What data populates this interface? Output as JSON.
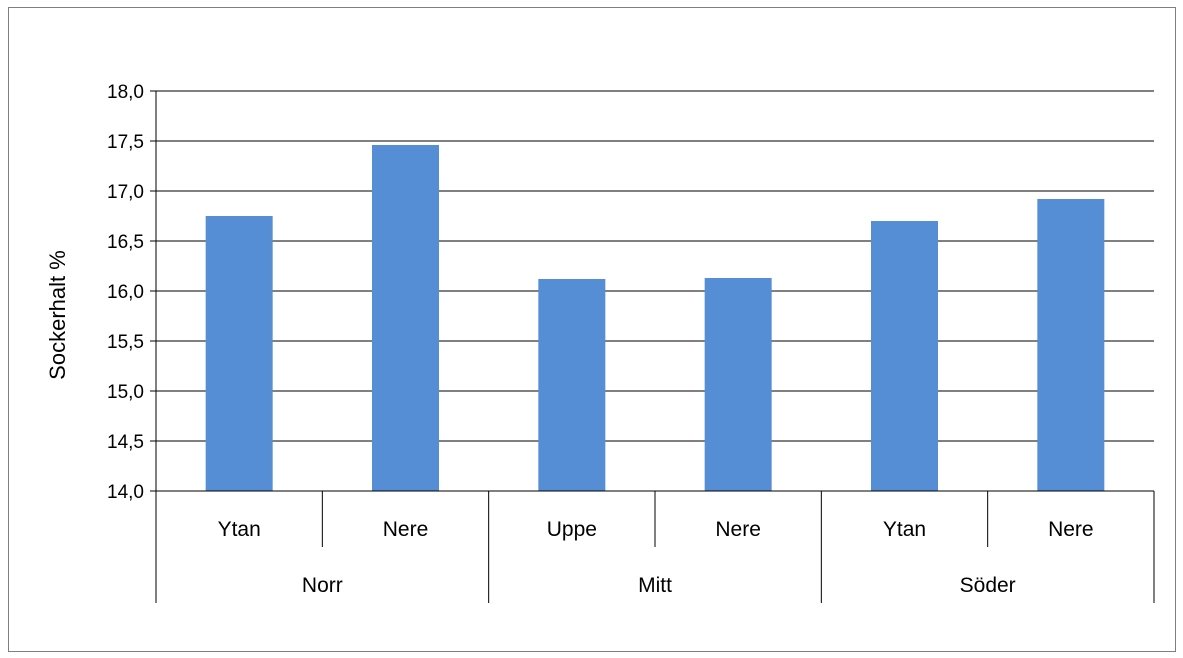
{
  "chart_data": {
    "type": "bar",
    "title": "",
    "ylabel": "Sockerhalt  %",
    "xlabel": "",
    "ylim": [
      14.0,
      18.0
    ],
    "ytick_step": 0.5,
    "ytick_labels": [
      "14,0",
      "14,5",
      "15,0",
      "15,5",
      "16,0",
      "16,5",
      "17,0",
      "17,5",
      "18,0"
    ],
    "grid": true,
    "legend": "none",
    "bar_color": "#558ed5",
    "groups": [
      {
        "label": "Norr",
        "categories": [
          "Ytan",
          "Nere"
        ]
      },
      {
        "label": "Mitt",
        "categories": [
          "Uppe",
          "Nere"
        ]
      },
      {
        "label": "Söder",
        "categories": [
          "Ytan",
          "Nere"
        ]
      }
    ],
    "categories": [
      "Ytan",
      "Nere",
      "Uppe",
      "Nere",
      "Ytan",
      "Nere"
    ],
    "values": [
      16.75,
      17.46,
      16.12,
      16.13,
      16.7,
      16.92
    ]
  }
}
